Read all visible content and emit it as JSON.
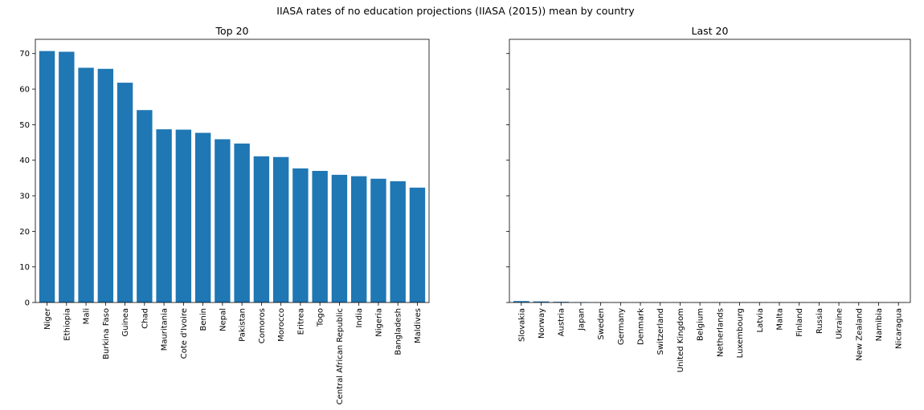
{
  "figure": {
    "title": "IIASA rates of no education projections (IIASA (2015)) mean by country"
  },
  "chart_data": [
    {
      "type": "bar",
      "title": "Top 20",
      "xlabel": "",
      "ylabel": "",
      "ylim": [
        0,
        74
      ],
      "yticks": [
        0,
        10,
        20,
        30,
        40,
        50,
        60,
        70
      ],
      "categories": [
        "Niger",
        "Ethiopia",
        "Mali",
        "Burkina Faso",
        "Guinea",
        "Chad",
        "Mauritania",
        "Cote d'Ivoire",
        "Benin",
        "Nepal",
        "Pakistan",
        "Comoros",
        "Morocco",
        "Eritrea",
        "Togo",
        "Central African Republic",
        "India",
        "Nigeria",
        "Bangladesh",
        "Maldives"
      ],
      "values": [
        70.7,
        70.5,
        66.0,
        65.7,
        61.8,
        54.1,
        48.7,
        48.6,
        47.7,
        45.9,
        44.7,
        41.1,
        40.9,
        37.7,
        37.0,
        35.9,
        35.5,
        34.8,
        34.1,
        32.3
      ],
      "color": "#1f77b4",
      "grid": false
    },
    {
      "type": "bar",
      "title": "Last 20",
      "xlabel": "",
      "ylabel": "",
      "ylim": [
        0,
        74
      ],
      "yticks": [
        0,
        10,
        20,
        30,
        40,
        50,
        60,
        70
      ],
      "shared_y": true,
      "categories": [
        "Slovakia",
        "Norway",
        "Austria",
        "Japan",
        "Sweden",
        "Germany",
        "Denmark",
        "Switzerland",
        "United Kingdom",
        "Belgium",
        "Netherlands",
        "Luxembourg",
        "Latvia",
        "Malta",
        "Finland",
        "Russia",
        "Ukraine",
        "New Zealand",
        "Namibia",
        "Nicaragua"
      ],
      "values": [
        0.4,
        0.3,
        0.2,
        0.1,
        0.05,
        0.05,
        0.05,
        0.05,
        0.05,
        0.05,
        0.05,
        0.05,
        0.05,
        0.05,
        0.05,
        0.05,
        0.05,
        0.05,
        0.05,
        0.05
      ],
      "color": "#1f77b4",
      "grid": false
    }
  ]
}
